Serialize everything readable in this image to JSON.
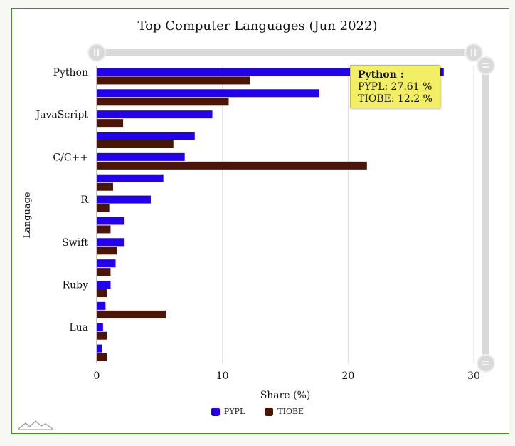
{
  "chart_data": {
    "type": "bar",
    "orientation": "horizontal",
    "title": "Top Computer Languages (Jun 2022)",
    "xlabel": "Share (%)",
    "ylabel": "Language",
    "xlim": [
      0,
      30
    ],
    "xticks": [
      0,
      10,
      20,
      30
    ],
    "category_labels_shown": [
      "Python",
      "JavaScript",
      "C/C++",
      "R",
      "Swift",
      "Ruby",
      "Lua"
    ],
    "label_every": 2,
    "bar_count": 14,
    "series": [
      {
        "name": "PYPL",
        "color": "#2200ee",
        "values": [
          27.61,
          17.7,
          9.2,
          7.8,
          7.0,
          5.3,
          4.3,
          2.2,
          2.2,
          1.5,
          1.1,
          0.7,
          0.5,
          0.45
        ]
      },
      {
        "name": "TIOBE",
        "color": "#4a1506",
        "values": [
          12.2,
          10.5,
          2.1,
          6.1,
          21.5,
          1.3,
          1.0,
          1.1,
          1.6,
          1.1,
          0.8,
          5.5,
          0.8,
          0.8
        ]
      }
    ],
    "legend_position": "bottom-center",
    "grid": "vertical",
    "tooltip": {
      "title": "Python :",
      "lines": [
        "PYPL: 27.61 %",
        "TIOBE: 12.2 %"
      ]
    }
  }
}
